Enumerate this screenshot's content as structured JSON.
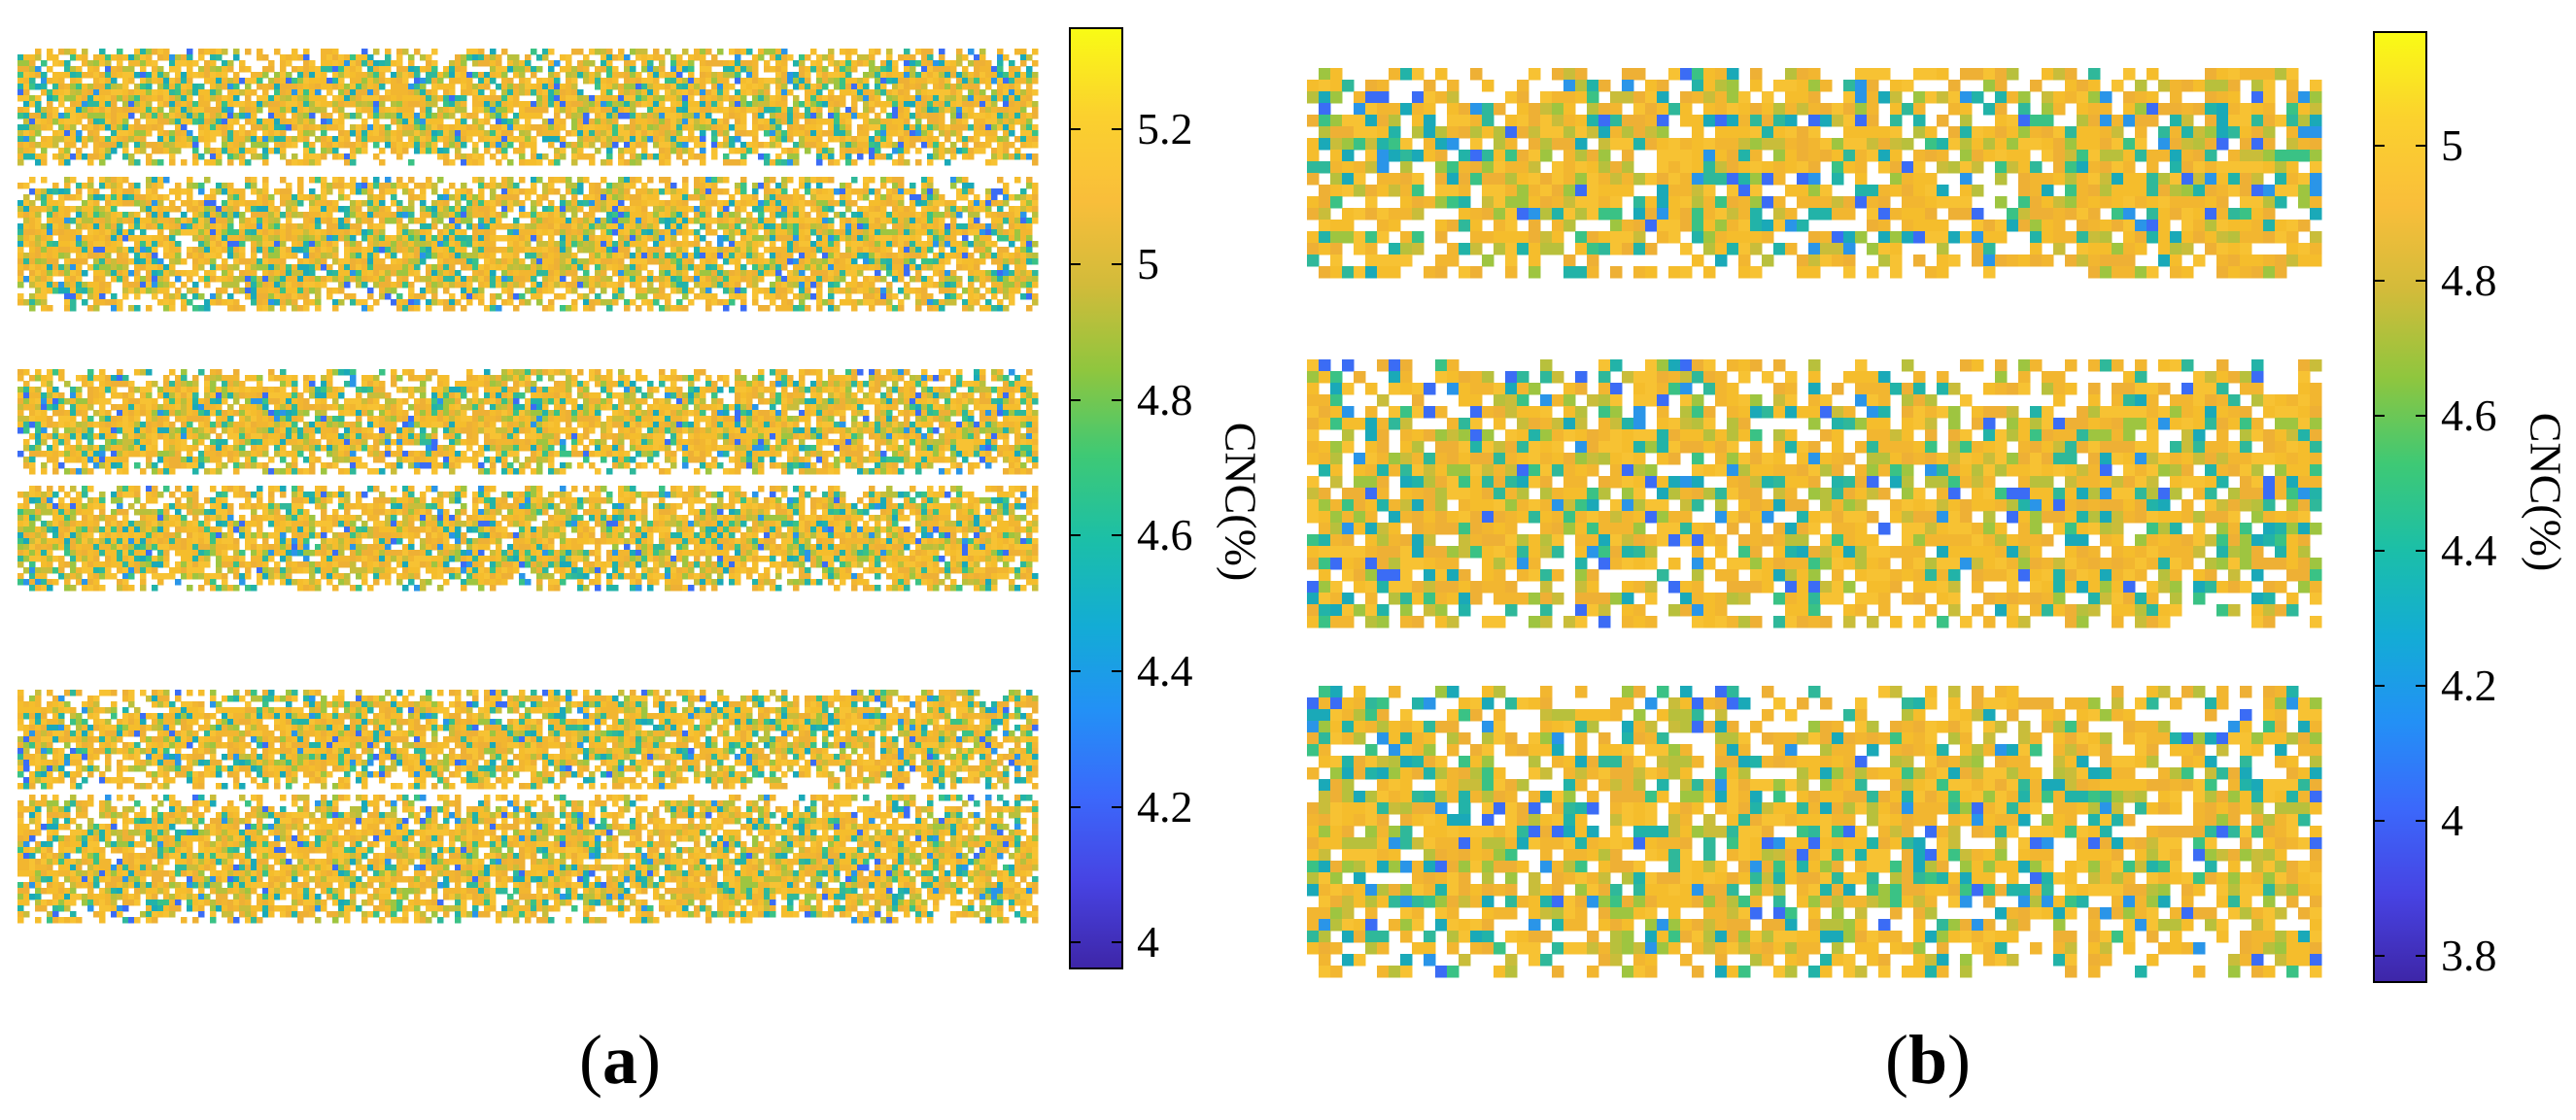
{
  "panels": [
    {
      "id": "a",
      "caption_open": "(",
      "caption_letter": "a",
      "caption_close": ")",
      "colorbar": {
        "label": "CNC(%)",
        "min": 3.96,
        "max": 5.35,
        "ticks": [
          "4",
          "4.2",
          "4.4",
          "4.6",
          "4.8",
          "5",
          "5.2"
        ],
        "tick_values": [
          4.0,
          4.2,
          4.4,
          4.6,
          4.8,
          5.0,
          5.2
        ]
      }
    },
    {
      "id": "b",
      "caption_open": "(",
      "caption_letter": "b",
      "caption_close": ")",
      "colorbar": {
        "label": "CNC(%)",
        "min": 3.76,
        "max": 5.17,
        "ticks": [
          "3.8",
          "4",
          "4.2",
          "4.4",
          "4.6",
          "4.8",
          "5"
        ],
        "tick_values": [
          3.8,
          4.0,
          4.2,
          4.4,
          4.6,
          4.8,
          5.0
        ]
      }
    }
  ],
  "colors": {
    "colormap": [
      "#3e26a8",
      "#4743e3",
      "#3b68fb",
      "#2390f6",
      "#13acd5",
      "#1bbfa8",
      "#3ec975",
      "#8fc63e",
      "#d2bb3a",
      "#f9be3a",
      "#fbd12e",
      "#f9fb15"
    ],
    "dominant_fill": "#f2b630",
    "secondary_fill": "#2fb89a"
  }
}
